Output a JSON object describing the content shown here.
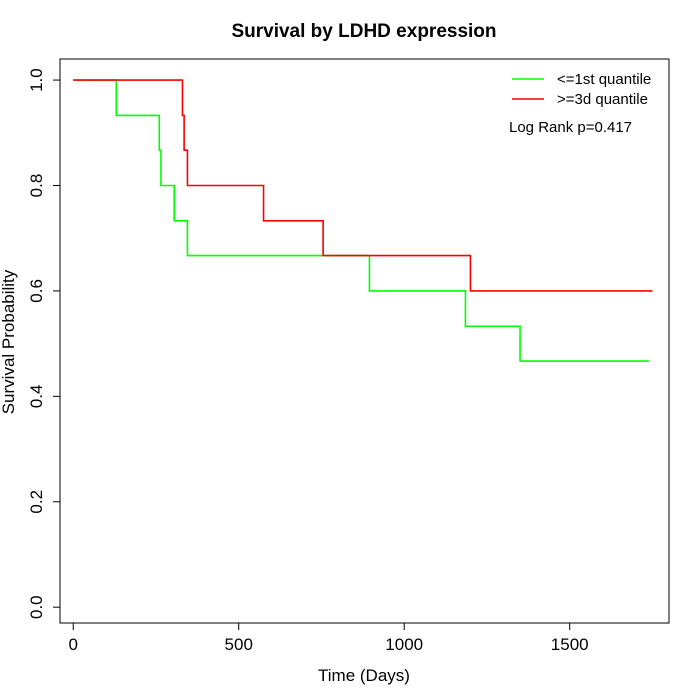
{
  "chart_data": {
    "type": "line",
    "title": "Survival by LDHD expression",
    "xlabel": "Time (Days)",
    "ylabel": "Survival Probability",
    "xlim": [
      -40,
      1800
    ],
    "ylim": [
      -0.03,
      1.04
    ],
    "xticks": [
      0,
      500,
      1000,
      1500
    ],
    "yticks": [
      0.0,
      0.2,
      0.4,
      0.6,
      0.8,
      1.0
    ],
    "xtick_labels": [
      "0",
      "500",
      "1000",
      "1500"
    ],
    "ytick_labels": [
      "0.0",
      "0.2",
      "0.4",
      "0.6",
      "0.8",
      "1.0"
    ],
    "grid": false,
    "legend_position": "top-right",
    "annotation": "Log Rank p=0.417",
    "series": [
      {
        "name": "<=1st quantile",
        "color": "#00ff00",
        "step": true,
        "x": [
          0,
          130,
          260,
          265,
          305,
          345,
          895,
          1185,
          1350,
          1740
        ],
        "y": [
          1.0,
          0.933,
          0.867,
          0.8,
          0.733,
          0.667,
          0.6,
          0.533,
          0.467,
          0.467
        ]
      },
      {
        "name": ">=3d quantile",
        "color": "#ff0000",
        "step": true,
        "x": [
          0,
          330,
          335,
          345,
          575,
          755,
          1200,
          1750
        ],
        "y": [
          1.0,
          0.933,
          0.867,
          0.8,
          0.733,
          0.667,
          0.6,
          0.6
        ]
      }
    ]
  }
}
